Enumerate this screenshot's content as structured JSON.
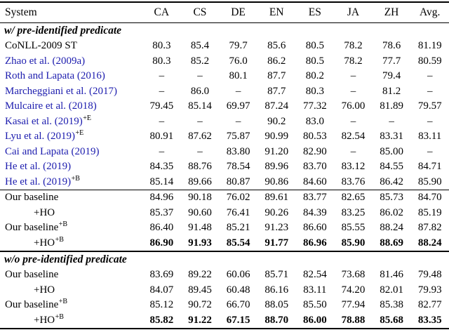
{
  "accent": {
    "citation_color": "#1c1cae"
  },
  "columns": [
    "System",
    "CA",
    "CS",
    "DE",
    "EN",
    "ES",
    "JA",
    "ZH",
    "Avg."
  ],
  "sections": [
    {
      "title": "w/ pre-identified predicate",
      "groups": [
        {
          "rows": [
            {
              "label": "CoNLL-2009 ST",
              "sup": "",
              "cite": false,
              "indent": false,
              "bold": false,
              "values": [
                "80.3",
                "85.4",
                "79.7",
                "85.6",
                "80.5",
                "78.2",
                "78.6",
                "81.19"
              ]
            },
            {
              "label": "Zhao et al. (2009a)",
              "sup": "",
              "cite": true,
              "indent": false,
              "bold": false,
              "values": [
                "80.3",
                "85.2",
                "76.0",
                "86.2",
                "80.5",
                "78.2",
                "77.7",
                "80.59"
              ]
            },
            {
              "label": "Roth and Lapata (2016)",
              "sup": "",
              "cite": true,
              "indent": false,
              "bold": false,
              "values": [
                "–",
                "–",
                "80.1",
                "87.7",
                "80.2",
                "–",
                "79.4",
                "–"
              ]
            },
            {
              "label": "Marcheggiani et al. (2017)",
              "sup": "",
              "cite": true,
              "indent": false,
              "bold": false,
              "values": [
                "–",
                "86.0",
                "–",
                "87.7",
                "80.3",
                "–",
                "81.2",
                "–"
              ]
            },
            {
              "label": "Mulcaire et al. (2018)",
              "sup": "",
              "cite": true,
              "indent": false,
              "bold": false,
              "values": [
                "79.45",
                "85.14",
                "69.97",
                "87.24",
                "77.32",
                "76.00",
                "81.89",
                "79.57"
              ]
            },
            {
              "label": "Kasai et al. (2019)",
              "sup": "+E",
              "cite": true,
              "indent": false,
              "bold": false,
              "values": [
                "–",
                "–",
                "–",
                "90.2",
                "83.0",
                "–",
                "–",
                "–"
              ]
            },
            {
              "label": "Lyu et al. (2019)",
              "sup": "+E",
              "cite": true,
              "indent": false,
              "bold": false,
              "values": [
                "80.91",
                "87.62",
                "75.87",
                "90.99",
                "80.53",
                "82.54",
                "83.31",
                "83.11"
              ]
            },
            {
              "label": "Cai and Lapata (2019)",
              "sup": "",
              "cite": true,
              "indent": false,
              "bold": false,
              "values": [
                "–",
                "–",
                "83.80",
                "91.20",
                "82.90",
                "–",
                "85.00",
                "–"
              ]
            },
            {
              "label": "He et al. (2019)",
              "sup": "",
              "cite": true,
              "indent": false,
              "bold": false,
              "values": [
                "84.35",
                "88.76",
                "78.54",
                "89.96",
                "83.70",
                "83.12",
                "84.55",
                "84.71"
              ]
            },
            {
              "label": "He et al. (2019)",
              "sup": "+B",
              "cite": true,
              "indent": false,
              "bold": false,
              "values": [
                "85.14",
                "89.66",
                "80.87",
                "90.86",
                "84.60",
                "83.76",
                "86.42",
                "85.90"
              ]
            }
          ]
        },
        {
          "rows": [
            {
              "label": "Our baseline",
              "sup": "",
              "cite": false,
              "indent": false,
              "bold": false,
              "values": [
                "84.96",
                "90.18",
                "76.02",
                "89.61",
                "83.77",
                "82.65",
                "85.73",
                "84.70"
              ]
            },
            {
              "label": "+HO",
              "sup": "",
              "cite": false,
              "indent": true,
              "bold": false,
              "values": [
                "85.37",
                "90.60",
                "76.41",
                "90.26",
                "84.39",
                "83.25",
                "86.02",
                "85.19"
              ]
            },
            {
              "label": "Our baseline",
              "sup": "+B",
              "cite": false,
              "indent": false,
              "bold": false,
              "values": [
                "86.40",
                "91.48",
                "85.21",
                "91.23",
                "86.60",
                "85.55",
                "88.24",
                "87.82"
              ]
            },
            {
              "label": "+HO",
              "sup": "+B",
              "cite": false,
              "indent": true,
              "bold": true,
              "values": [
                "86.90",
                "91.93",
                "85.54",
                "91.77",
                "86.96",
                "85.90",
                "88.69",
                "88.24"
              ]
            }
          ]
        }
      ]
    },
    {
      "title": "w/o pre-identified predicate",
      "groups": [
        {
          "rows": [
            {
              "label": "Our baseline",
              "sup": "",
              "cite": false,
              "indent": false,
              "bold": false,
              "values": [
                "83.69",
                "89.22",
                "60.06",
                "85.71",
                "82.54",
                "73.68",
                "81.46",
                "79.48"
              ]
            },
            {
              "label": "+HO",
              "sup": "",
              "cite": false,
              "indent": true,
              "bold": false,
              "values": [
                "84.07",
                "89.45",
                "60.48",
                "86.16",
                "83.11",
                "74.20",
                "82.01",
                "79.93"
              ]
            },
            {
              "label": "Our baseline",
              "sup": "+B",
              "cite": false,
              "indent": false,
              "bold": false,
              "values": [
                "85.12",
                "90.72",
                "66.70",
                "88.05",
                "85.50",
                "77.94",
                "85.38",
                "82.77"
              ]
            },
            {
              "label": "+HO",
              "sup": "+B",
              "cite": false,
              "indent": true,
              "bold": true,
              "values": [
                "85.82",
                "91.22",
                "67.15",
                "88.70",
                "86.00",
                "78.88",
                "85.68",
                "83.35"
              ]
            }
          ]
        }
      ]
    }
  ]
}
